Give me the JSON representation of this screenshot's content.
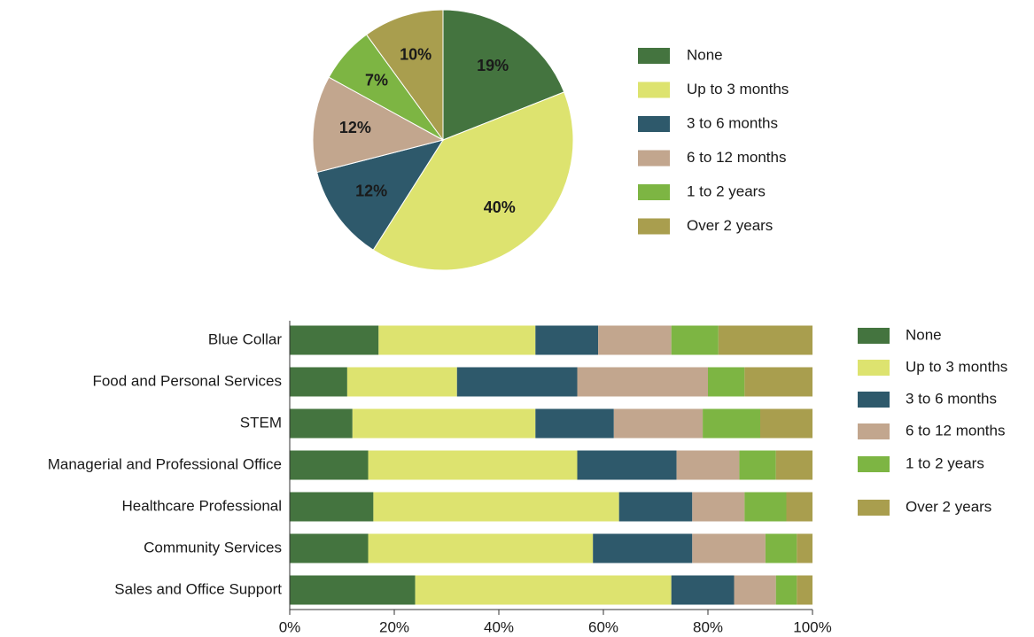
{
  "chart_data": [
    {
      "type": "pie",
      "categories": [
        "None",
        "Up to 3 months",
        "3 to 6 months",
        "6 to 12 months",
        "1 to 2 years",
        "Over 2 years"
      ],
      "values": [
        19,
        40,
        12,
        12,
        7,
        10
      ],
      "value_labels": [
        "19%",
        "40%",
        "12%",
        "12%",
        "7%",
        "10%"
      ],
      "colors": [
        "#44743f",
        "#dde36f",
        "#2e596b",
        "#c2a68e",
        "#7db543",
        "#a99e4e"
      ]
    },
    {
      "type": "stacked_bar_horizontal",
      "categories": [
        "Blue Collar",
        "Food and Personal Services",
        "STEM",
        "Managerial and Professional Office",
        "Healthcare Professional",
        "Community Services",
        "Sales and Office Support"
      ],
      "series": [
        {
          "name": "None",
          "color": "#44743f",
          "values": [
            17,
            11,
            12,
            15,
            16,
            15,
            24
          ]
        },
        {
          "name": "Up to 3 months",
          "color": "#dde36f",
          "values": [
            30,
            21,
            35,
            40,
            47,
            43,
            49
          ]
        },
        {
          "name": "3 to 6 months",
          "color": "#2e596b",
          "values": [
            12,
            23,
            15,
            19,
            14,
            19,
            12
          ]
        },
        {
          "name": "6 to 12 months",
          "color": "#c2a68e",
          "values": [
            14,
            25,
            17,
            12,
            10,
            14,
            8
          ]
        },
        {
          "name": "1 to 2 years",
          "color": "#7db543",
          "values": [
            9,
            7,
            11,
            7,
            8,
            6,
            4
          ]
        },
        {
          "name": "Over 2 years",
          "color": "#a99e4e",
          "values": [
            18,
            13,
            10,
            7,
            5,
            3,
            3
          ]
        }
      ],
      "xlim": [
        0,
        100
      ],
      "xticks": [
        {
          "value": 0,
          "label": "0%"
        },
        {
          "value": 20,
          "label": "20%"
        },
        {
          "value": 40,
          "label": "40%"
        },
        {
          "value": 60,
          "label": "60%"
        },
        {
          "value": 80,
          "label": "80%"
        },
        {
          "value": 100,
          "label": "100%"
        }
      ]
    }
  ]
}
